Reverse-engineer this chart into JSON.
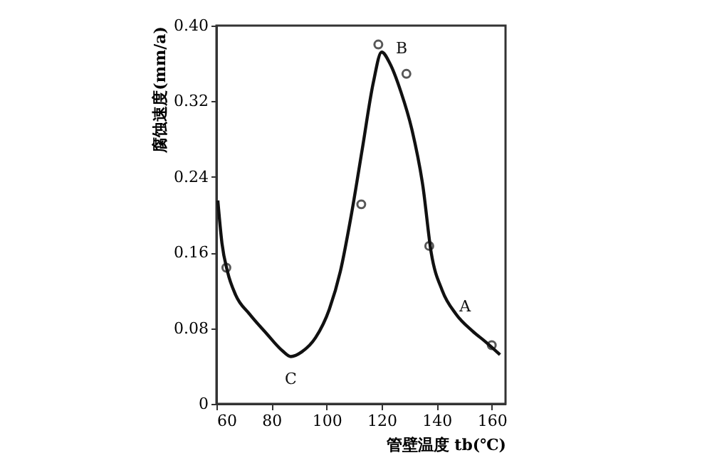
{
  "chart_data": {
    "type": "line",
    "xlabel": "管壁温度 tb(℃)",
    "ylabel": "腐蚀速度(mm/a)",
    "xlim": [
      60,
      165
    ],
    "xticks": [
      60,
      80,
      100,
      120,
      140,
      160
    ],
    "ylim": [
      0,
      0.4
    ],
    "yticks": [
      0,
      0.08,
      0.16,
      0.24,
      0.32,
      {
        "value": 0.4,
        "label": "0.40"
      }
    ],
    "grid": false,
    "series": [
      {
        "color": "#111111",
        "marker": "none",
        "line_style": "solid",
        "x": [
          60.5,
          62,
          64,
          67,
          72,
          78,
          84,
          87,
          91,
          96,
          101,
          105,
          109,
          113,
          117,
          120,
          123,
          127,
          131,
          135,
          138,
          142,
          147,
          153,
          158,
          163
        ],
        "values": [
          0.215,
          0.17,
          0.14,
          0.115,
          0.095,
          0.075,
          0.056,
          0.05,
          0.055,
          0.07,
          0.1,
          0.14,
          0.2,
          0.27,
          0.34,
          0.372,
          0.36,
          0.33,
          0.29,
          0.23,
          0.16,
          0.12,
          0.095,
          0.077,
          0.065,
          0.052
        ]
      },
      {
        "type": "scatter",
        "color": "#111111",
        "marker": "circle",
        "x": [
          63.6,
          112.6,
          118.8,
          129,
          137.3,
          160
        ],
        "values": [
          0.144,
          0.211,
          0.38,
          0.349,
          0.167,
          0.062
        ]
      }
    ],
    "annotations": [
      {
        "text": "B",
        "x": 120,
        "y": 0.372
      },
      {
        "text": "A",
        "x": 142,
        "y": 0.12
      },
      {
        "text": "C",
        "x": 87,
        "y": 0.05
      }
    ]
  }
}
